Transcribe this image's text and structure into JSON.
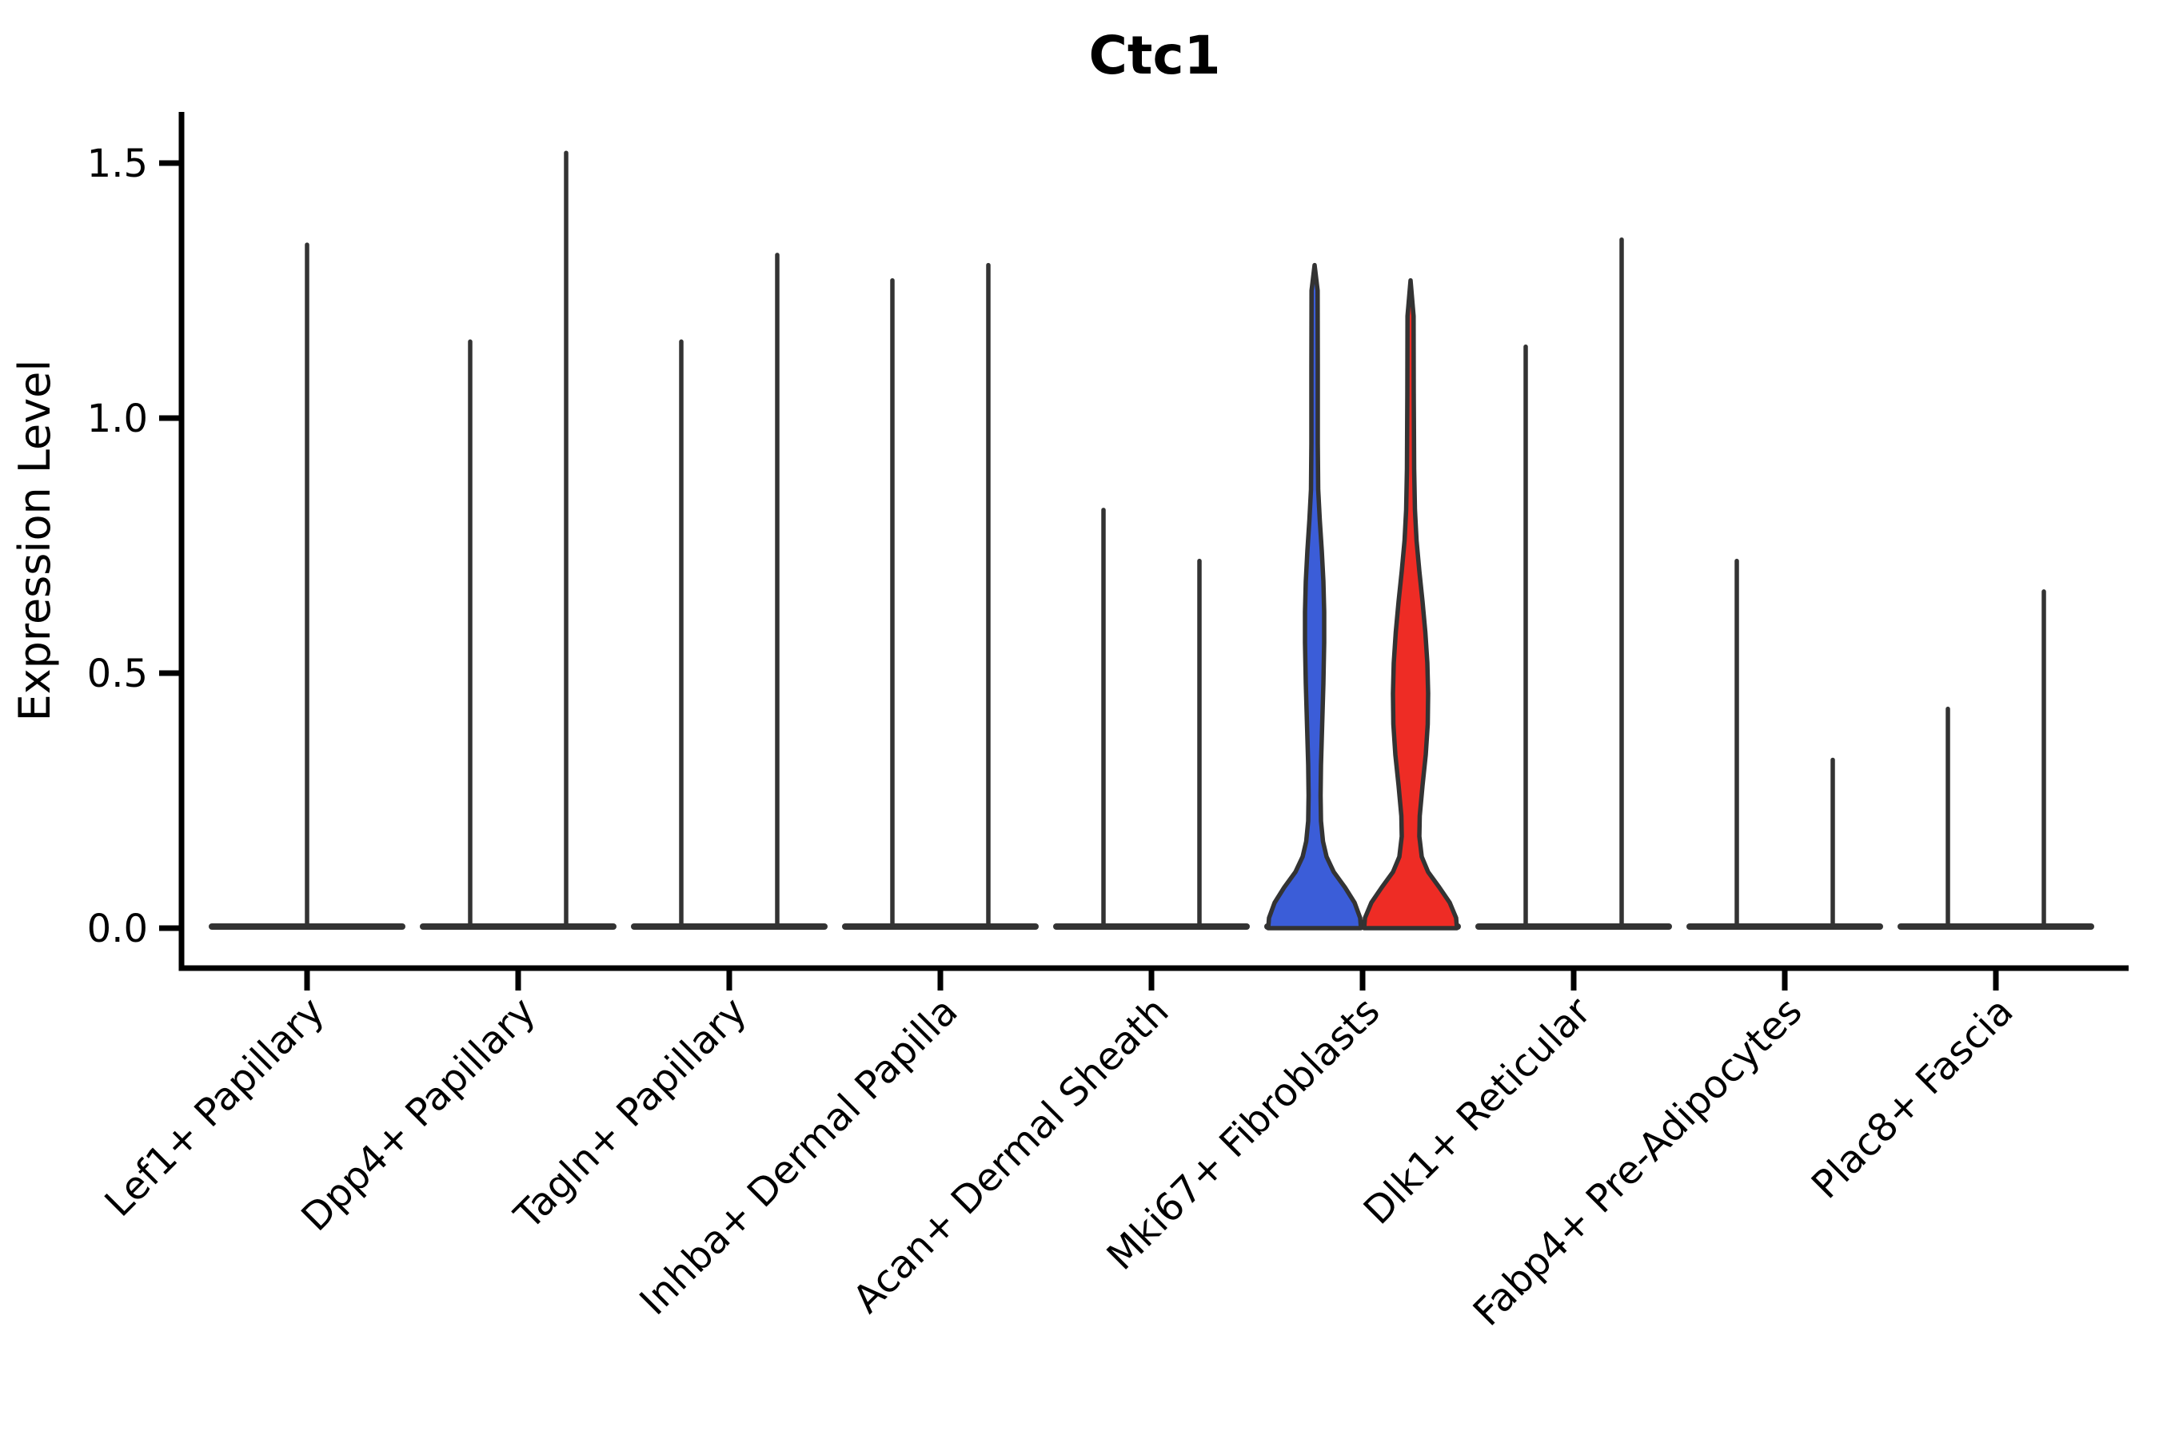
{
  "title": "Ctc1",
  "axes": {
    "y_label": "Expression Level",
    "y_ticks": [
      "0.0",
      "0.5",
      "1.0",
      "1.5"
    ],
    "y_tick_values": [
      0,
      0.5,
      1,
      1.5
    ]
  },
  "colors": {
    "blue": "#3B5DD8",
    "red": "#EE2C25",
    "outline": "#333333",
    "axis": "#000000",
    "text": "#000000"
  },
  "chart_data": {
    "type": "violin",
    "title": "Ctc1",
    "xlabel": "",
    "ylabel": "Expression Level",
    "ylim": [
      -0.08,
      1.6
    ],
    "y_ticks": [
      0,
      0.5,
      1,
      1.5
    ],
    "grid": false,
    "legend_position": "none",
    "categories": [
      "Lef1+ Papillary",
      "Dpp4+ Papillary",
      "Tagln+ Papillary",
      "Inhba+ Dermal Papilla",
      "Acan+ Dermal Sheath",
      "Mki67+ Fibroblasts",
      "Dlk1+ Reticular",
      "Fabp4+ Pre-Adipocytes",
      "Plac8+ Fascia"
    ],
    "violins": [
      {
        "category": "Lef1+ Papillary",
        "position": "center",
        "fill": "none",
        "max_expression": 1.34,
        "shape": "spike"
      },
      {
        "category": "Dpp4+ Papillary",
        "position": "left",
        "fill": "none",
        "max_expression": 1.15,
        "shape": "spike"
      },
      {
        "category": "Dpp4+ Papillary",
        "position": "right",
        "fill": "none",
        "max_expression": 1.52,
        "shape": "spike"
      },
      {
        "category": "Tagln+ Papillary",
        "position": "left",
        "fill": "none",
        "max_expression": 1.15,
        "shape": "spike"
      },
      {
        "category": "Tagln+ Papillary",
        "position": "right",
        "fill": "none",
        "max_expression": 1.32,
        "shape": "spike"
      },
      {
        "category": "Inhba+ Dermal Papilla",
        "position": "left",
        "fill": "none",
        "max_expression": 1.27,
        "shape": "spike"
      },
      {
        "category": "Inhba+ Dermal Papilla",
        "position": "right",
        "fill": "none",
        "max_expression": 1.3,
        "shape": "spike"
      },
      {
        "category": "Acan+ Dermal Sheath",
        "position": "left",
        "fill": "none",
        "max_expression": 0.82,
        "shape": "spike"
      },
      {
        "category": "Acan+ Dermal Sheath",
        "position": "right",
        "fill": "none",
        "max_expression": 0.72,
        "shape": "spike"
      },
      {
        "category": "Mki67+ Fibroblasts",
        "position": "left",
        "fill": "blue",
        "max_expression": 1.3,
        "shape": "body",
        "profile": [
          [
            0,
            58
          ],
          [
            0.02,
            57
          ],
          [
            0.05,
            50
          ],
          [
            0.08,
            38
          ],
          [
            0.11,
            24
          ],
          [
            0.14,
            15
          ],
          [
            0.17,
            10.5
          ],
          [
            0.21,
            8
          ],
          [
            0.26,
            7.5
          ],
          [
            0.32,
            8
          ],
          [
            0.4,
            9.5
          ],
          [
            0.48,
            11
          ],
          [
            0.56,
            12
          ],
          [
            0.62,
            12
          ],
          [
            0.68,
            11
          ],
          [
            0.74,
            9
          ],
          [
            0.8,
            6.5
          ],
          [
            0.86,
            4.5
          ],
          [
            0.95,
            4
          ],
          [
            1.1,
            4
          ],
          [
            1.25,
            3.8
          ]
        ]
      },
      {
        "category": "Mki67+ Fibroblasts",
        "position": "right",
        "fill": "red",
        "max_expression": 1.27,
        "shape": "body",
        "profile": [
          [
            0,
            58
          ],
          [
            0.02,
            57
          ],
          [
            0.05,
            49
          ],
          [
            0.08,
            36
          ],
          [
            0.11,
            22
          ],
          [
            0.14,
            14
          ],
          [
            0.18,
            11
          ],
          [
            0.22,
            11.5
          ],
          [
            0.28,
            15
          ],
          [
            0.34,
            19
          ],
          [
            0.4,
            21.5
          ],
          [
            0.46,
            22
          ],
          [
            0.52,
            21
          ],
          [
            0.58,
            18.5
          ],
          [
            0.64,
            15
          ],
          [
            0.7,
            11
          ],
          [
            0.76,
            7.5
          ],
          [
            0.82,
            5.5
          ],
          [
            0.9,
            4.5
          ],
          [
            1.05,
            4
          ],
          [
            1.2,
            3.8
          ]
        ]
      },
      {
        "category": "Dlk1+ Reticular",
        "position": "left",
        "fill": "none",
        "max_expression": 1.14,
        "shape": "spike"
      },
      {
        "category": "Dlk1+ Reticular",
        "position": "right",
        "fill": "none",
        "max_expression": 1.35,
        "shape": "spike"
      },
      {
        "category": "Fabp4+ Pre-Adipocytes",
        "position": "left",
        "fill": "none",
        "max_expression": 0.72,
        "shape": "spike"
      },
      {
        "category": "Fabp4+ Pre-Adipocytes",
        "position": "right",
        "fill": "none",
        "max_expression": 0.33,
        "shape": "spike"
      },
      {
        "category": "Plac8+ Fascia",
        "position": "left",
        "fill": "none",
        "max_expression": 0.43,
        "shape": "spike"
      },
      {
        "category": "Plac8+ Fascia",
        "position": "right",
        "fill": "none",
        "max_expression": 0.66,
        "shape": "spike"
      }
    ]
  }
}
